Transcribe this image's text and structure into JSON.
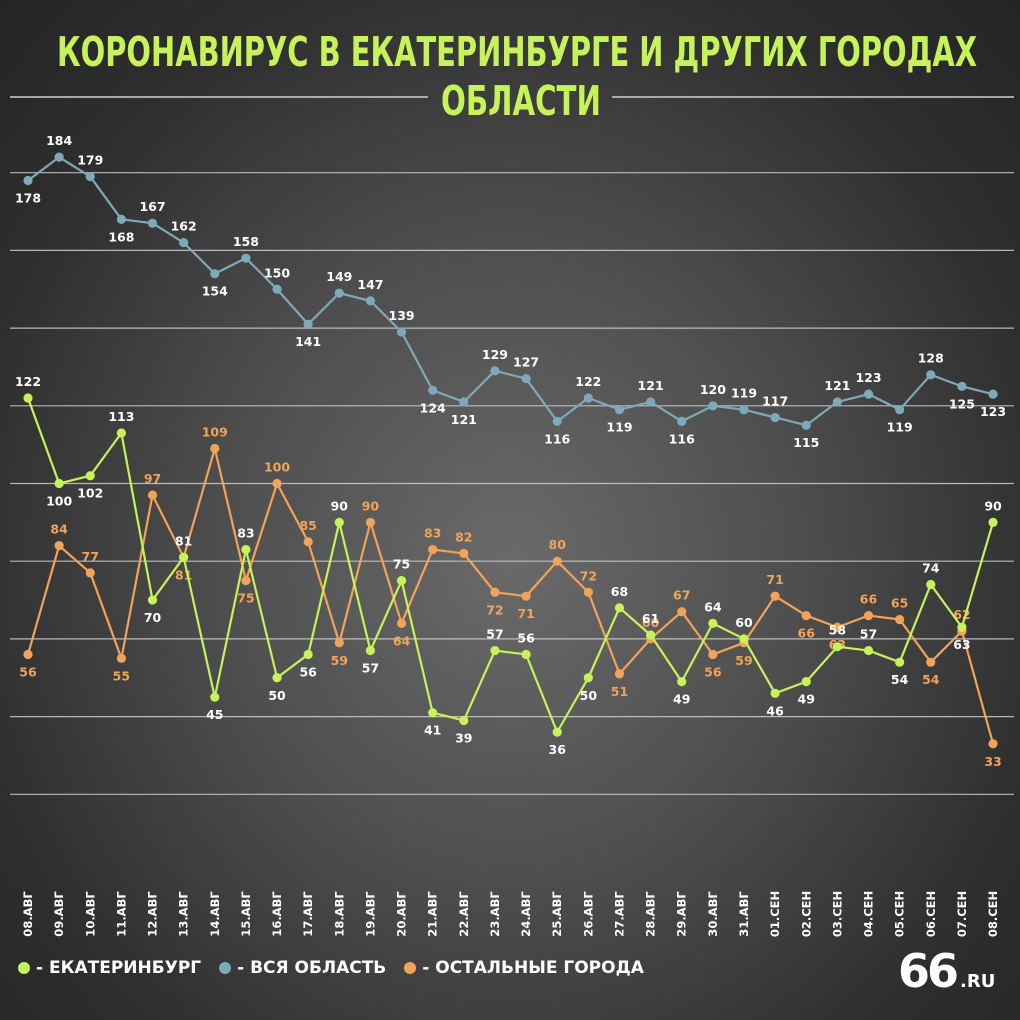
{
  "header": {
    "title_line1": "КОРОНАВИРУС В ЕКАТЕРИНБУРГЕ И ДРУГИХ ГОРОДАХ",
    "title_line2": "ОБЛАСТИ"
  },
  "colors": {
    "ekb": "#c6f25a",
    "region": "#7ea9b8",
    "other": "#f2a35a",
    "title": "#c6f25a",
    "grid": "#d0d0d0"
  },
  "legend": {
    "ekb_label": "- ЕКАТЕРИНБУРГ",
    "region_label": "- ВСЯ ОБЛАСТЬ",
    "other_label": "- ОСТАЛЬНЫЕ ГОРОДА"
  },
  "logo": {
    "number": "66",
    "suffix": ".RU"
  },
  "chart_data": {
    "type": "line",
    "title": "КОРОНАВИРУС В ЕКАТЕРИНБУРГЕ И ДРУГИХ ГОРОДАХ ОБЛАСТИ",
    "x": [
      "08.АВГ",
      "09.АВГ",
      "10.АВГ",
      "11.АВГ",
      "12.АВГ",
      "13.АВГ",
      "14.АВГ",
      "15.АВГ",
      "16.АВГ",
      "17.АВГ",
      "18.АВГ",
      "19.АВГ",
      "20.АВГ",
      "21.АВГ",
      "22.АВГ",
      "23.АВГ",
      "24.АВГ",
      "25.АВГ",
      "26.АВГ",
      "27.АВГ",
      "28.АВГ",
      "29.АВГ",
      "30.АВГ",
      "31.АВГ",
      "01.СЕН",
      "02.СЕН",
      "03.СЕН",
      "04.СЕН",
      "05.СЕН",
      "06.СЕН",
      "07.СЕН",
      "08.СЕН"
    ],
    "ylim": [
      0,
      220
    ],
    "grid": true,
    "legend_position": "bottom-left",
    "series": [
      {
        "name": "ВСЯ ОБЛАСТЬ",
        "color": "#7ea9b8",
        "values": [
          178,
          184,
          179,
          168,
          167,
          162,
          154,
          158,
          150,
          141,
          149,
          147,
          139,
          124,
          121,
          129,
          127,
          116,
          122,
          119,
          121,
          116,
          120,
          119,
          117,
          115,
          121,
          123,
          119,
          128,
          125,
          123
        ]
      },
      {
        "name": "ЕКАТЕРИНБУРГ",
        "color": "#c6f25a",
        "values": [
          122,
          100,
          102,
          113,
          70,
          81,
          45,
          83,
          50,
          56,
          90,
          57,
          75,
          41,
          39,
          57,
          56,
          36,
          50,
          68,
          61,
          49,
          64,
          60,
          46,
          49,
          58,
          57,
          54,
          74,
          63,
          90
        ]
      },
      {
        "name": "ОСТАЛЬНЫЕ ГОРОДА",
        "color": "#f2a35a",
        "values": [
          56,
          84,
          77,
          55,
          97,
          81,
          109,
          75,
          100,
          85,
          59,
          90,
          64,
          83,
          82,
          72,
          71,
          80,
          72,
          51,
          60,
          67,
          56,
          59,
          71,
          66,
          63,
          66,
          65,
          54,
          62,
          33
        ]
      }
    ]
  }
}
